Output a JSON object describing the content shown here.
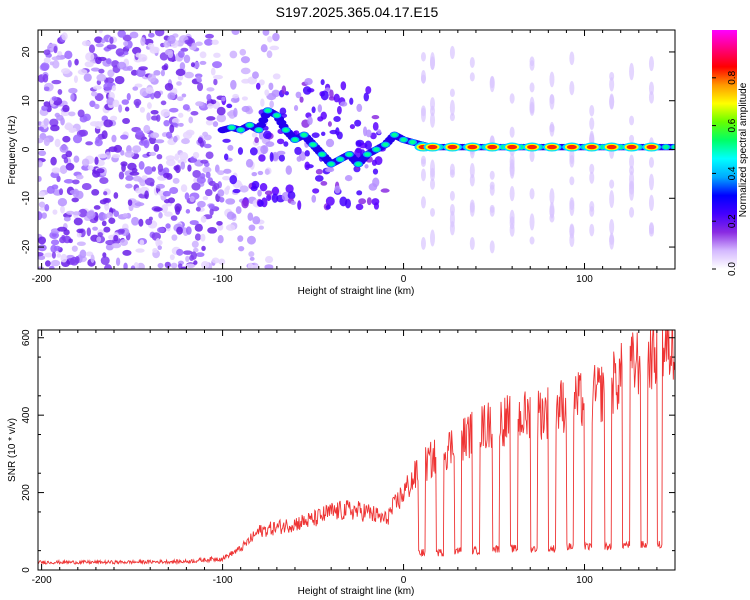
{
  "title": "S197.2025.365.04.17.E15",
  "chart_data": [
    {
      "type": "heatmap",
      "xlabel": "Height of straight line (km)",
      "ylabel": "Frequency (Hz)",
      "xlim": [
        -202,
        150
      ],
      "ylim": [
        -24.5,
        24.5
      ],
      "xticks": [
        "-200",
        "-100",
        "0",
        "100"
      ],
      "yticks": [
        "-20",
        "-10",
        "0",
        "10",
        "20"
      ],
      "colorbar": {
        "label": "Normalized spectral amplitude",
        "range": [
          0,
          1
        ],
        "ticks": [
          "0.0",
          "0.2",
          "0.4",
          "0.6",
          "0.8"
        ],
        "colors": [
          "#ffffff",
          "#d4b8ff",
          "#8a2be2",
          "#4400ff",
          "#0000ff",
          "#00aaff",
          "#00ffff",
          "#00ff66",
          "#66ff00",
          "#ffff00",
          "#ff9900",
          "#ff0000",
          "#ff0080",
          "#ff00ff"
        ]
      },
      "ridge": {
        "x": [
          -100,
          -95,
          -90,
          -85,
          -80,
          -75,
          -70,
          -65,
          -60,
          -55,
          -50,
          -45,
          -40,
          -35,
          -30,
          -25,
          -20,
          -15,
          -10,
          -5,
          0,
          5,
          10,
          15,
          20,
          25,
          30,
          35,
          40,
          45,
          50,
          55,
          60,
          65,
          70,
          75,
          80,
          85,
          90,
          95,
          100,
          105,
          110,
          115,
          120,
          125,
          130,
          135,
          140,
          145,
          150
        ],
        "freq": [
          4,
          4.5,
          4,
          5,
          4,
          8,
          7,
          4,
          2,
          3,
          1,
          -1,
          -3,
          -2,
          -1,
          -3,
          -1,
          0,
          1,
          3,
          2,
          1.5,
          1,
          0.5,
          0.5,
          0.5,
          0.5,
          0.5,
          0.5,
          0.5,
          0.5,
          0.5,
          0.5,
          0.5,
          0.5,
          0.5,
          0.5,
          0.5,
          0.5,
          0.5,
          0.5,
          0.5,
          0.5,
          0.5,
          0.5,
          0.5,
          0.5,
          0.5,
          0.5,
          0.5,
          0.5
        ]
      },
      "peaks_x": [
        11,
        16,
        27,
        38,
        49,
        60,
        71,
        82,
        93,
        104,
        115,
        126,
        137
      ],
      "noise_region_x": [
        -202,
        -100
      ]
    },
    {
      "type": "line",
      "xlabel": "Height of straight line (km)",
      "ylabel": "SNR (10 * v/v)",
      "xlim": [
        -202,
        150
      ],
      "ylim": [
        0,
        620
      ],
      "xticks": [
        "-200",
        "-100",
        "0",
        "100"
      ],
      "yticks": [
        "0",
        "200",
        "400",
        "600"
      ],
      "color": "#ee3333",
      "envelope": {
        "x": [
          -202,
          -160,
          -120,
          -100,
          -90,
          -80,
          -60,
          -50,
          -40,
          -30,
          -20,
          -10,
          0,
          10,
          20,
          30,
          40,
          50,
          60,
          70,
          80,
          90,
          100,
          110,
          120,
          130,
          140,
          150
        ],
        "snr": [
          20,
          20,
          22,
          30,
          55,
          100,
          120,
          130,
          150,
          155,
          150,
          130,
          200,
          265,
          300,
          330,
          360,
          380,
          390,
          400,
          410,
          430,
          440,
          460,
          500,
          540,
          570,
          580
        ]
      },
      "dropouts": [
        {
          "x0": 8,
          "x1": 12,
          "snr": 45
        },
        {
          "x0": 18,
          "x1": 22,
          "snr": 45
        },
        {
          "x0": 28,
          "x1": 32,
          "snr": 50
        },
        {
          "x0": 38,
          "x1": 42,
          "snr": 50
        },
        {
          "x0": 49,
          "x1": 53,
          "snr": 55
        },
        {
          "x0": 59,
          "x1": 63,
          "snr": 55
        },
        {
          "x0": 70,
          "x1": 74,
          "snr": 55
        },
        {
          "x0": 80,
          "x1": 84,
          "snr": 55
        },
        {
          "x0": 90,
          "x1": 94,
          "snr": 60
        },
        {
          "x0": 100,
          "x1": 104,
          "snr": 60
        },
        {
          "x0": 111,
          "x1": 115,
          "snr": 60
        },
        {
          "x0": 121,
          "x1": 125,
          "snr": 65
        },
        {
          "x0": 131,
          "x1": 135,
          "snr": 65
        },
        {
          "x0": 140,
          "x1": 143,
          "snr": 65
        }
      ]
    }
  ]
}
